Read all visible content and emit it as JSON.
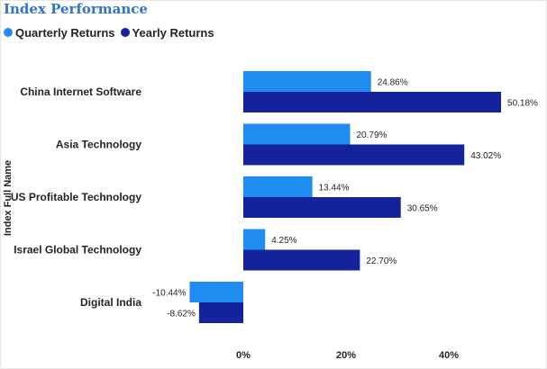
{
  "title": "Index Performance",
  "legend": {
    "quarterly": "Quarterly Returns",
    "yearly": "Yearly Returns"
  },
  "colors": {
    "quarterly": "#1f8cf0",
    "yearly": "#14239b"
  },
  "chart_data": {
    "type": "bar",
    "orientation": "horizontal",
    "title": "Index Performance",
    "ylabel": "Index Full Name",
    "xlabel": "",
    "categories": [
      "China Internet Software",
      "Asia Technology",
      "US Profitable Technology",
      "Israel Global Technology",
      "Digital India"
    ],
    "series": [
      {
        "name": "Quarterly Returns",
        "values": [
          24.86,
          20.79,
          13.44,
          4.25,
          -10.44
        ],
        "labels": [
          "24.86%",
          "20.79%",
          "13.44%",
          "4.25%",
          "-10.44%"
        ]
      },
      {
        "name": "Yearly Returns",
        "values": [
          50.18,
          43.02,
          30.65,
          22.7,
          -8.62
        ],
        "labels": [
          "50.18%",
          "43.02%",
          "30.65%",
          "22.70%",
          "-8.62%"
        ]
      }
    ],
    "xticks": [
      0,
      20,
      40
    ],
    "xtick_labels": [
      "0%",
      "20%",
      "40%"
    ],
    "grid": false
  }
}
